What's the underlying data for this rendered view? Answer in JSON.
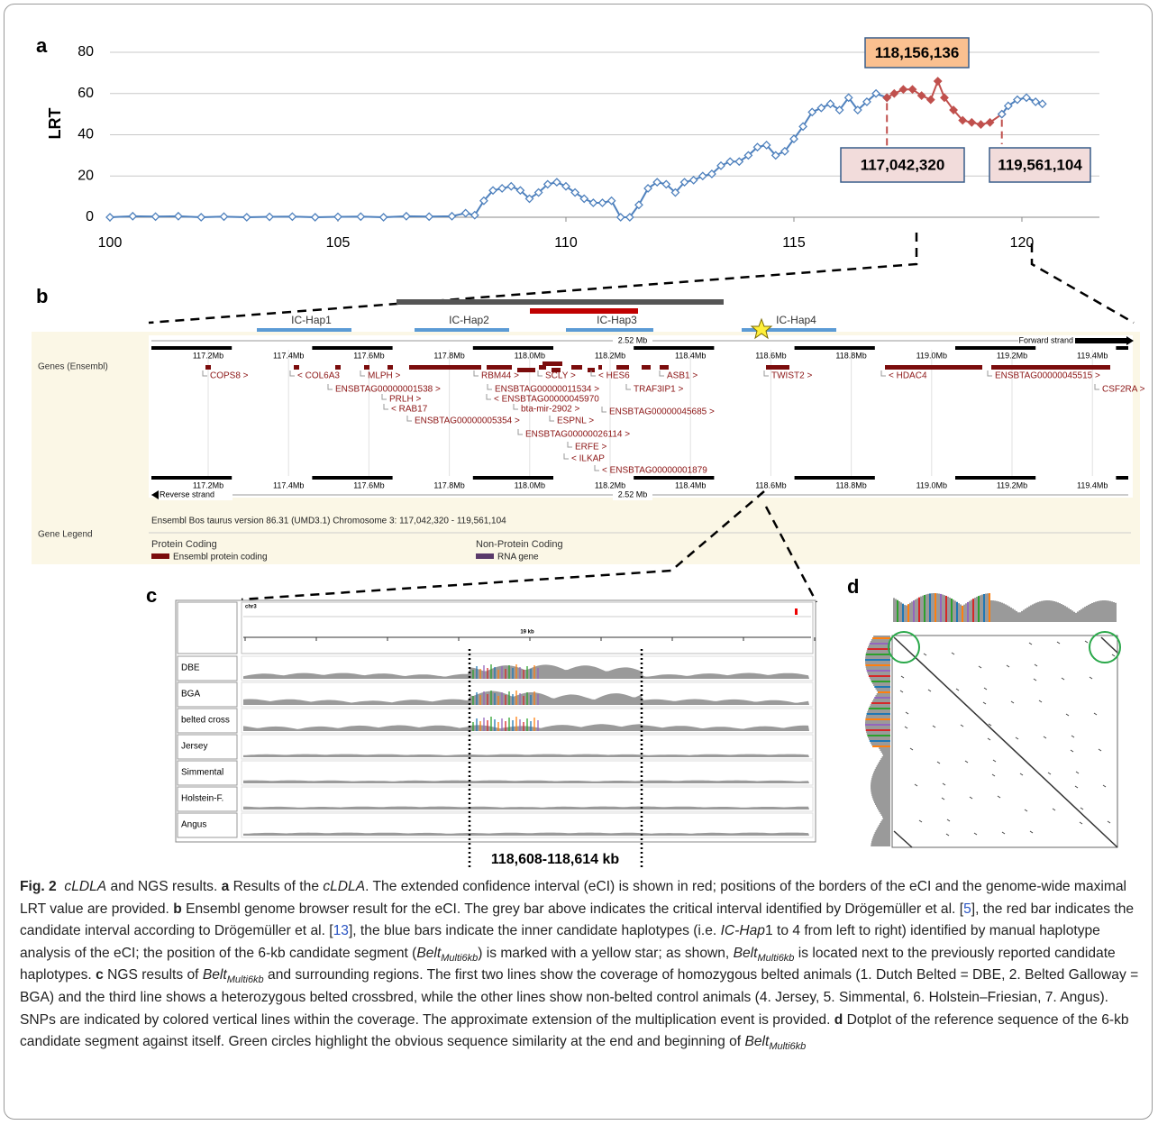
{
  "chart_data": {
    "type": "line",
    "panel_label": "a",
    "y_label": "LRT",
    "xlim": [
      100,
      121.7
    ],
    "ylim": [
      0,
      80
    ],
    "xticks": [
      100,
      105,
      110,
      115,
      120
    ],
    "yticks": [
      0,
      20,
      40,
      60,
      80
    ],
    "grid": true,
    "series": [
      {
        "color": "#4f81bd",
        "x": [
          100,
          100.5,
          101,
          101.5,
          102,
          102.5,
          103,
          103.5,
          104,
          104.5,
          105,
          105.5,
          106,
          106.5,
          107,
          107.5,
          107.8,
          108.0,
          108.2,
          108.4,
          108.6,
          108.8,
          109.0,
          109.2,
          109.4,
          109.6,
          109.8,
          110.0,
          110.2,
          110.4,
          110.6,
          110.8,
          111.0,
          111.2,
          111.4,
          111.6,
          111.8,
          112.0,
          112.2,
          112.4,
          112.6,
          112.8,
          113.0,
          113.2,
          113.4,
          113.6,
          113.8,
          114.0,
          114.2,
          114.4,
          114.6,
          114.8,
          115.0,
          115.2,
          115.4,
          115.6,
          115.8,
          116.0,
          116.2,
          116.4,
          116.6,
          116.8,
          117.04
        ],
        "values": [
          0,
          0.5,
          0.3,
          0.5,
          0,
          0.3,
          0,
          0.2,
          0.3,
          0,
          0.2,
          0.3,
          0,
          0.5,
          0.3,
          0.5,
          2,
          1,
          8,
          13,
          14,
          15,
          13,
          9,
          12,
          16,
          17,
          15,
          12,
          9,
          7,
          7,
          8,
          0,
          0,
          6,
          14,
          17,
          16,
          12,
          17,
          18,
          20,
          21,
          25,
          27,
          27,
          30,
          34,
          35,
          30,
          32,
          38,
          44,
          51,
          53,
          55,
          52,
          58,
          52,
          56,
          60,
          58
        ]
      },
      {
        "color": "#c0504d",
        "x": [
          117.04,
          117.2,
          117.4,
          117.6,
          117.8,
          118.0,
          118.156,
          118.3,
          118.5,
          118.7,
          118.9,
          119.1,
          119.3,
          119.56
        ],
        "values": [
          58,
          60,
          62,
          62,
          59,
          57,
          66,
          58,
          52,
          47,
          46,
          45,
          46,
          50
        ]
      },
      {
        "color": "#4f81bd",
        "x": [
          119.56,
          119.7,
          119.9,
          120.1,
          120.3,
          120.45
        ],
        "values": [
          50,
          54,
          57,
          58,
          56,
          55
        ]
      }
    ],
    "annotations": [
      "118,156,136",
      "117,042,320",
      "119,561,104"
    ]
  },
  "panel_b": {
    "label": "b",
    "haplotypes": [
      "IC-Hap1",
      "IC-Hap2",
      "IC-Hap3",
      "IC-Hap4"
    ],
    "scale_top": "2.52 Mb",
    "forward_strand": "Forward strand",
    "ruler_top": [
      "117.2Mb",
      "117.4Mb",
      "117.6Mb",
      "117.8Mb",
      "118.0Mb",
      "118.2Mb",
      "118.4Mb",
      "118.6Mb",
      "118.8Mb",
      "119.0Mb",
      "119.2Mb",
      "119.4Mb"
    ],
    "track_label": "Genes (Ensembl)",
    "genes": [
      "COPS8 >",
      "< COL6A3",
      "MLPH >",
      "ENSBTAG00000001538 >",
      "PRLH >",
      "< RAB17",
      "ENSBTAG00000005354 >",
      "RBM44 >",
      "ENSBTAG00000011534 >",
      "< ENSBTAG00000045970",
      "bta-mir-2902 >",
      "ESPNL >",
      "ENSBTAG00000026114 >",
      "ERFE >",
      "< ILKAP",
      "< ENSBTAG00000001879",
      "SCLY >",
      "< HES6",
      "TRAF3IP1 >",
      "ENSBTAG00000045685 >",
      "ASB1 >",
      "TWIST2 >",
      "< HDAC4",
      "ENSBTAG00000045515 >",
      "CSF2RA >"
    ],
    "ruler_bottom": [
      "117.2Mb",
      "117.4Mb",
      "117.6Mb",
      "117.8Mb",
      "118.0Mb",
      "118.2Mb",
      "118.4Mb",
      "118.6Mb",
      "118.8Mb",
      "119.0Mb",
      "119.2Mb",
      "119.4Mb"
    ],
    "reverse_strand": "Reverse strand",
    "scale_bottom": "2.52 Mb",
    "info": "Ensembl Bos taurus version 86.31 (UMD3.1) Chromosome 3: 117,042,320 - 119,561,104",
    "legend_title": "Gene Legend",
    "legend_groups": [
      {
        "title": "Protein Coding",
        "item": "Ensembl protein coding"
      },
      {
        "title": "Non-Protein Coding",
        "item": "RNA gene"
      }
    ]
  },
  "panel_c": {
    "label": "c",
    "chromosome": "chr3",
    "span": "19 kb",
    "tracks": [
      "DBE",
      "BGA",
      "belted cross",
      "Jersey",
      "Simmental",
      "Holstein-F.",
      "Angus"
    ],
    "region": "118,608-118,614 kb"
  },
  "panel_d": {
    "label": "d"
  },
  "caption": [
    "Fig. 2",
    "cLDLA",
    " and NGS results. ",
    "a",
    " Results of the ",
    "cLDLA",
    ". The extended confidence interval (eCI) is shown in red; positions of the borders of the eCI and the genome-wide maximal LRT value are provided. ",
    "b",
    " Ensembl genome browser result for the eCI. The grey bar above indicates the critical interval identified by Drögemüller et al. [",
    "5",
    "], the red bar indicates the candidate interval according to Drögemüller et al. [",
    "13",
    "], the blue bars indicate the inner candidate haplotypes (i.e. ",
    "IC-Hap",
    "1 to 4 from left to right) identified by manual haplotype analysis of the eCI; the position of the 6-kb candidate segment (",
    "Belt",
    "Multi6kb",
    ") is marked with a yellow star; as shown, ",
    "Belt",
    "Multi6kb",
    " is located next to the previously reported candidate haplotypes. ",
    "c",
    " NGS results of ",
    "Belt",
    "Multi6kb",
    " and surrounding regions. The first two lines show the coverage of homozygous belted animals (1. Dutch Belted = DBE, 2. Belted Galloway = BGA) and the third line shows a heterozygous belted crossbred, while the other lines show non-belted control animals (4. Jersey, 5. Simmental, 6. Holstein–Friesian, 7. Angus). SNPs are indicated by colored vertical lines within the coverage. The approximate extension of the multiplication event is provided. ",
    "d",
    " Dotplot of the reference sequence of the 6-kb candidate segment against itself. Green circles highlight the obvious sequence similarity at the end and beginning of ",
    "Belt",
    "Multi6kb"
  ]
}
